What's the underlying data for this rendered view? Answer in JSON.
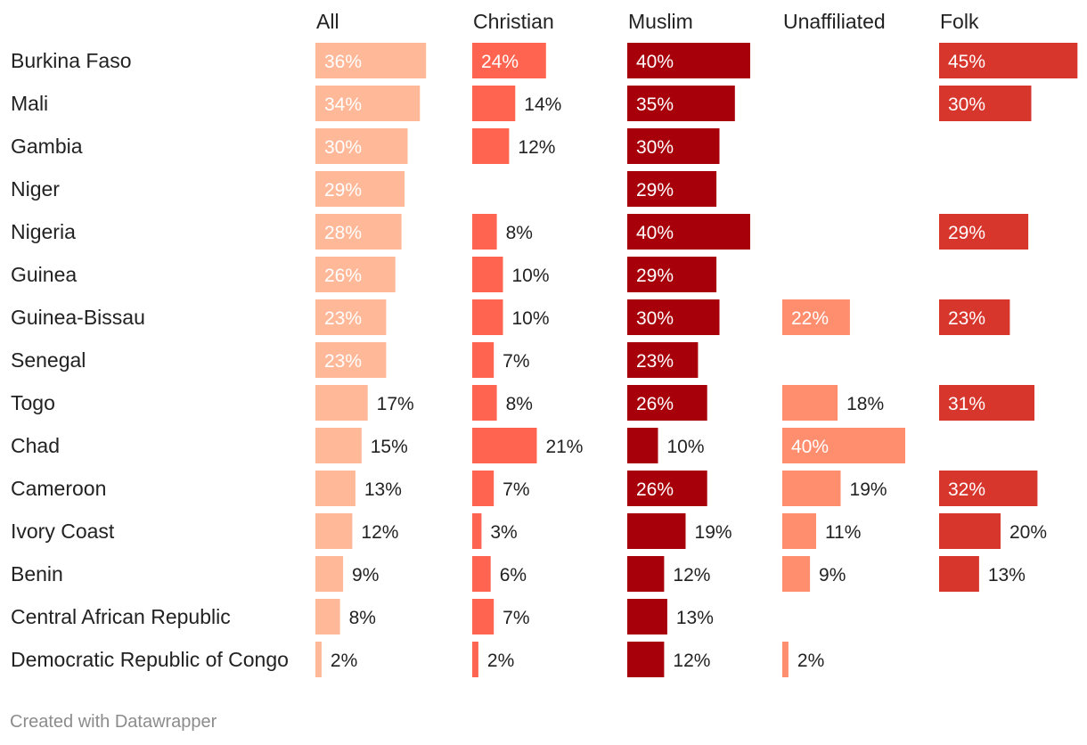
{
  "chart_data": {
    "type": "bar",
    "layout": "small-multiples-horizontal",
    "title": "",
    "unit": "%",
    "categories": [
      "Burkina Faso",
      "Mali",
      "Gambia",
      "Niger",
      "Nigeria",
      "Guinea",
      "Guinea-Bissau",
      "Senegal",
      "Togo",
      "Chad",
      "Cameroon",
      "Ivory Coast",
      "Benin",
      "Central African Republic",
      "Democratic Republic of Congo"
    ],
    "series": [
      {
        "name": "All",
        "color": "#ffb898",
        "values": [
          36,
          34,
          30,
          29,
          28,
          26,
          23,
          23,
          17,
          15,
          13,
          12,
          9,
          8,
          2
        ]
      },
      {
        "name": "Christian",
        "color": "#ff6450",
        "values": [
          24,
          14,
          12,
          null,
          8,
          10,
          10,
          7,
          8,
          21,
          7,
          3,
          6,
          7,
          2
        ]
      },
      {
        "name": "Muslim",
        "color": "#a8000b",
        "values": [
          40,
          35,
          30,
          29,
          40,
          29,
          30,
          23,
          26,
          10,
          26,
          19,
          12,
          13,
          12
        ]
      },
      {
        "name": "Unaffiliated",
        "color": "#ff8e6e",
        "values": [
          null,
          null,
          null,
          null,
          null,
          null,
          22,
          null,
          18,
          40,
          19,
          11,
          9,
          null,
          2
        ]
      },
      {
        "name": "Folk",
        "color": "#d7362d",
        "values": [
          45,
          30,
          null,
          null,
          29,
          null,
          23,
          null,
          31,
          null,
          32,
          20,
          13,
          null,
          null
        ]
      }
    ],
    "xlim": [
      0,
      45
    ],
    "grid": false,
    "legend": "none"
  },
  "footer": {
    "credit": "Created with Datawrapper"
  }
}
